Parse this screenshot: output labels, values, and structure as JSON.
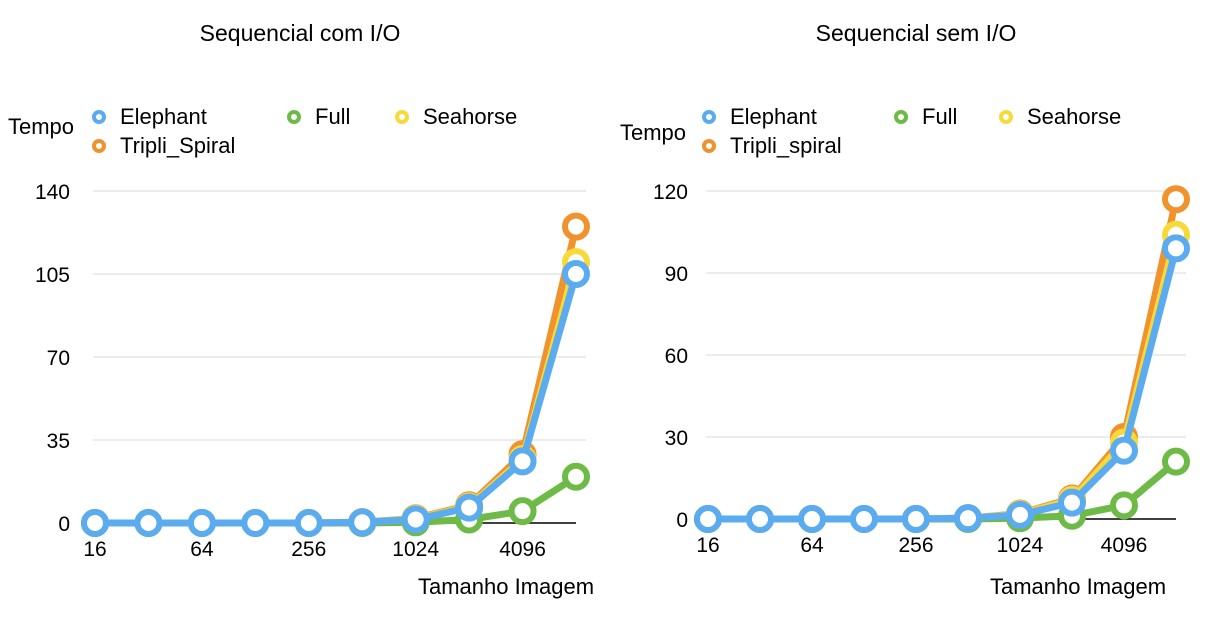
{
  "chart_data": [
    {
      "type": "line",
      "title": "Sequencial com I/O",
      "ylabel": "Tempo",
      "xlabel": "Tamanho Imagem",
      "x": [
        16,
        32,
        64,
        128,
        256,
        512,
        1024,
        2048,
        4096,
        8192
      ],
      "x_tick_labels": [
        "16",
        "64",
        "256",
        "1024",
        "4096"
      ],
      "x_tick_indices": [
        0,
        2,
        4,
        6,
        8
      ],
      "ylim": [
        0,
        140
      ],
      "y_ticks": [
        0,
        35,
        70,
        105,
        140
      ],
      "grid": true,
      "legend_position": "top",
      "series": [
        {
          "name": "Elephant",
          "color": "#5aabf0",
          "values": [
            0,
            0,
            0,
            0,
            0,
            0.3,
            1.5,
            6.5,
            26,
            105
          ]
        },
        {
          "name": "Full",
          "color": "#6dbb46",
          "values": [
            0,
            0,
            0,
            0,
            0,
            0,
            0.3,
            1.5,
            5,
            19.5
          ]
        },
        {
          "name": "Seahorse",
          "color": "#f7da3a",
          "values": [
            0,
            0,
            0,
            0,
            0,
            0.3,
            1.8,
            7,
            27,
            110
          ]
        },
        {
          "name": "Tripli_Spiral",
          "color": "#f0922e",
          "values": [
            0,
            0,
            0,
            0,
            0,
            0.3,
            2,
            7.5,
            29,
            125
          ]
        }
      ]
    },
    {
      "type": "line",
      "title": "Sequencial sem I/O",
      "ylabel": "Tempo",
      "xlabel": "Tamanho Imagem",
      "x": [
        16,
        32,
        64,
        128,
        256,
        512,
        1024,
        2048,
        4096,
        8192
      ],
      "x_tick_labels": [
        "16",
        "64",
        "256",
        "1024",
        "4096"
      ],
      "x_tick_indices": [
        0,
        2,
        4,
        6,
        8
      ],
      "ylim": [
        0,
        120
      ],
      "y_ticks": [
        0,
        30,
        60,
        90,
        120
      ],
      "grid": true,
      "legend_position": "top",
      "series": [
        {
          "name": "Elephant",
          "color": "#5aabf0",
          "values": [
            0,
            0,
            0,
            0,
            0,
            0.3,
            1.5,
            6,
            25,
            99
          ]
        },
        {
          "name": "Full",
          "color": "#6dbb46",
          "values": [
            0,
            0,
            0,
            0,
            0,
            0,
            0.3,
            1.2,
            5,
            21
          ]
        },
        {
          "name": "Seahorse",
          "color": "#f7da3a",
          "values": [
            0,
            0,
            0,
            0,
            0,
            0.3,
            1.8,
            7,
            28,
            104
          ]
        },
        {
          "name": "Tripli_spiral",
          "color": "#f0922e",
          "values": [
            0,
            0,
            0,
            0,
            0,
            0.3,
            2,
            7.5,
            30,
            117
          ]
        }
      ]
    }
  ]
}
